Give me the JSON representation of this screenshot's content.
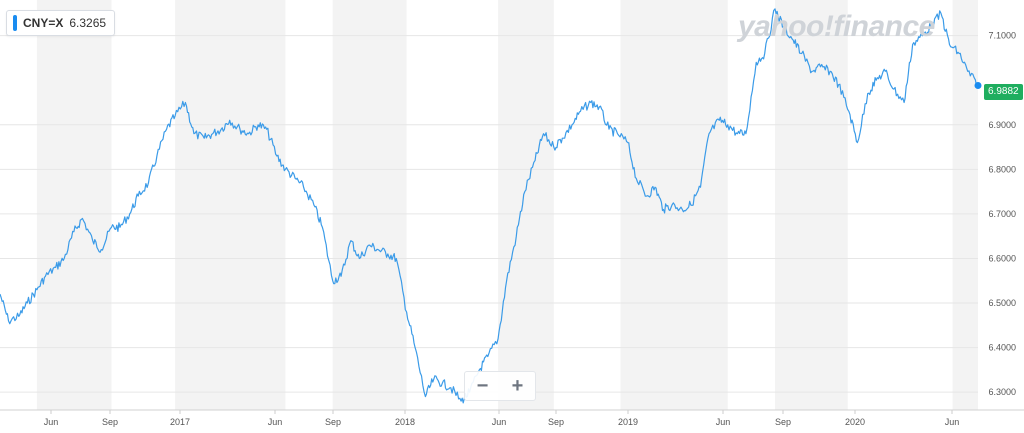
{
  "ticker": {
    "symbol": "CNY=X",
    "value": "6.3265",
    "swatch_color": "#1a8cf0"
  },
  "watermark": "yahoo!finance",
  "current_price_label": "6.9882",
  "zoom": {
    "minus": "−",
    "plus": "+"
  },
  "colors": {
    "line": "#3b9be8",
    "band": "#f3f3f3",
    "price_tag": "#1fae5f"
  },
  "chart_data": {
    "type": "line",
    "x_labels": [
      "Jun",
      "Sep",
      "2017",
      "Jun",
      "Sep",
      "2018",
      "Jun",
      "Sep",
      "2019",
      "Jun",
      "Sep",
      "2020",
      "Jun"
    ],
    "y_ticks": [
      "6.3000",
      "6.4000",
      "6.5000",
      "6.6000",
      "6.7000",
      "6.8000",
      "6.9000",
      "7.1000"
    ],
    "ylim": [
      6.26,
      7.18
    ],
    "grid": "horizontal",
    "series": [
      {
        "values": [
          [
            "2016-03-01",
            6.52
          ],
          [
            "2016-03-15",
            6.46
          ],
          [
            "2016-04-01",
            6.47
          ],
          [
            "2016-04-15",
            6.5
          ],
          [
            "2016-05-01",
            6.53
          ],
          [
            "2016-05-15",
            6.56
          ],
          [
            "2016-06-01",
            6.58
          ],
          [
            "2016-06-15",
            6.6
          ],
          [
            "2016-07-01",
            6.66
          ],
          [
            "2016-07-15",
            6.69
          ],
          [
            "2016-08-01",
            6.64
          ],
          [
            "2016-08-15",
            6.62
          ],
          [
            "2016-09-01",
            6.67
          ],
          [
            "2016-09-15",
            6.67
          ],
          [
            "2016-10-01",
            6.7
          ],
          [
            "2016-10-15",
            6.74
          ],
          [
            "2016-11-01",
            6.77
          ],
          [
            "2016-11-15",
            6.83
          ],
          [
            "2016-12-01",
            6.89
          ],
          [
            "2016-12-15",
            6.92
          ],
          [
            "2017-01-01",
            6.95
          ],
          [
            "2017-01-15",
            6.88
          ],
          [
            "2017-02-01",
            6.87
          ],
          [
            "2017-02-15",
            6.88
          ],
          [
            "2017-03-01",
            6.89
          ],
          [
            "2017-03-15",
            6.91
          ],
          [
            "2017-04-01",
            6.89
          ],
          [
            "2017-04-15",
            6.88
          ],
          [
            "2017-05-01",
            6.9
          ],
          [
            "2017-05-15",
            6.89
          ],
          [
            "2017-06-01",
            6.83
          ],
          [
            "2017-06-15",
            6.8
          ],
          [
            "2017-07-01",
            6.78
          ],
          [
            "2017-07-15",
            6.76
          ],
          [
            "2017-08-01",
            6.72
          ],
          [
            "2017-08-15",
            6.67
          ],
          [
            "2017-09-01",
            6.55
          ],
          [
            "2017-09-15",
            6.56
          ],
          [
            "2017-10-01",
            6.64
          ],
          [
            "2017-10-15",
            6.6
          ],
          [
            "2017-11-01",
            6.63
          ],
          [
            "2017-11-15",
            6.62
          ],
          [
            "2017-12-01",
            6.61
          ],
          [
            "2017-12-15",
            6.6
          ],
          [
            "2018-01-01",
            6.48
          ],
          [
            "2018-01-15",
            6.4
          ],
          [
            "2018-02-01",
            6.29
          ],
          [
            "2018-02-15",
            6.33
          ],
          [
            "2018-03-01",
            6.32
          ],
          [
            "2018-03-15",
            6.31
          ],
          [
            "2018-04-01",
            6.28
          ],
          [
            "2018-04-15",
            6.3
          ],
          [
            "2018-05-01",
            6.35
          ],
          [
            "2018-05-15",
            6.38
          ],
          [
            "2018-06-01",
            6.42
          ],
          [
            "2018-06-15",
            6.55
          ],
          [
            "2018-07-01",
            6.65
          ],
          [
            "2018-07-15",
            6.75
          ],
          [
            "2018-08-01",
            6.82
          ],
          [
            "2018-08-15",
            6.88
          ],
          [
            "2018-09-01",
            6.85
          ],
          [
            "2018-09-15",
            6.87
          ],
          [
            "2018-10-01",
            6.9
          ],
          [
            "2018-10-15",
            6.93
          ],
          [
            "2018-11-01",
            6.95
          ],
          [
            "2018-11-15",
            6.94
          ],
          [
            "2018-12-01",
            6.89
          ],
          [
            "2018-12-15",
            6.88
          ],
          [
            "2019-01-01",
            6.86
          ],
          [
            "2019-01-15",
            6.78
          ],
          [
            "2019-02-01",
            6.74
          ],
          [
            "2019-02-15",
            6.76
          ],
          [
            "2019-03-01",
            6.71
          ],
          [
            "2019-03-15",
            6.72
          ],
          [
            "2019-04-01",
            6.71
          ],
          [
            "2019-04-15",
            6.72
          ],
          [
            "2019-05-01",
            6.76
          ],
          [
            "2019-05-15",
            6.88
          ],
          [
            "2019-06-01",
            6.91
          ],
          [
            "2019-06-15",
            6.9
          ],
          [
            "2019-07-01",
            6.88
          ],
          [
            "2019-07-15",
            6.88
          ],
          [
            "2019-08-01",
            7.04
          ],
          [
            "2019-08-15",
            7.06
          ],
          [
            "2019-09-01",
            7.16
          ],
          [
            "2019-09-15",
            7.12
          ],
          [
            "2019-10-01",
            7.09
          ],
          [
            "2019-10-15",
            7.06
          ],
          [
            "2019-11-01",
            7.02
          ],
          [
            "2019-11-15",
            7.03
          ],
          [
            "2019-12-01",
            7.02
          ],
          [
            "2019-12-15",
            6.99
          ],
          [
            "2020-01-01",
            6.93
          ],
          [
            "2020-01-15",
            6.86
          ],
          [
            "2020-02-01",
            6.97
          ],
          [
            "2020-02-15",
            7.0
          ],
          [
            "2020-03-01",
            7.02
          ],
          [
            "2020-03-15",
            6.98
          ],
          [
            "2020-04-01",
            6.95
          ],
          [
            "2020-04-15",
            7.08
          ],
          [
            "2020-05-01",
            7.1
          ],
          [
            "2020-05-15",
            7.12
          ],
          [
            "2020-06-01",
            7.15
          ],
          [
            "2020-06-15",
            7.08
          ],
          [
            "2020-07-01",
            7.06
          ],
          [
            "2020-07-15",
            7.02
          ],
          [
            "2020-08-01",
            6.9882
          ]
        ]
      }
    ]
  }
}
